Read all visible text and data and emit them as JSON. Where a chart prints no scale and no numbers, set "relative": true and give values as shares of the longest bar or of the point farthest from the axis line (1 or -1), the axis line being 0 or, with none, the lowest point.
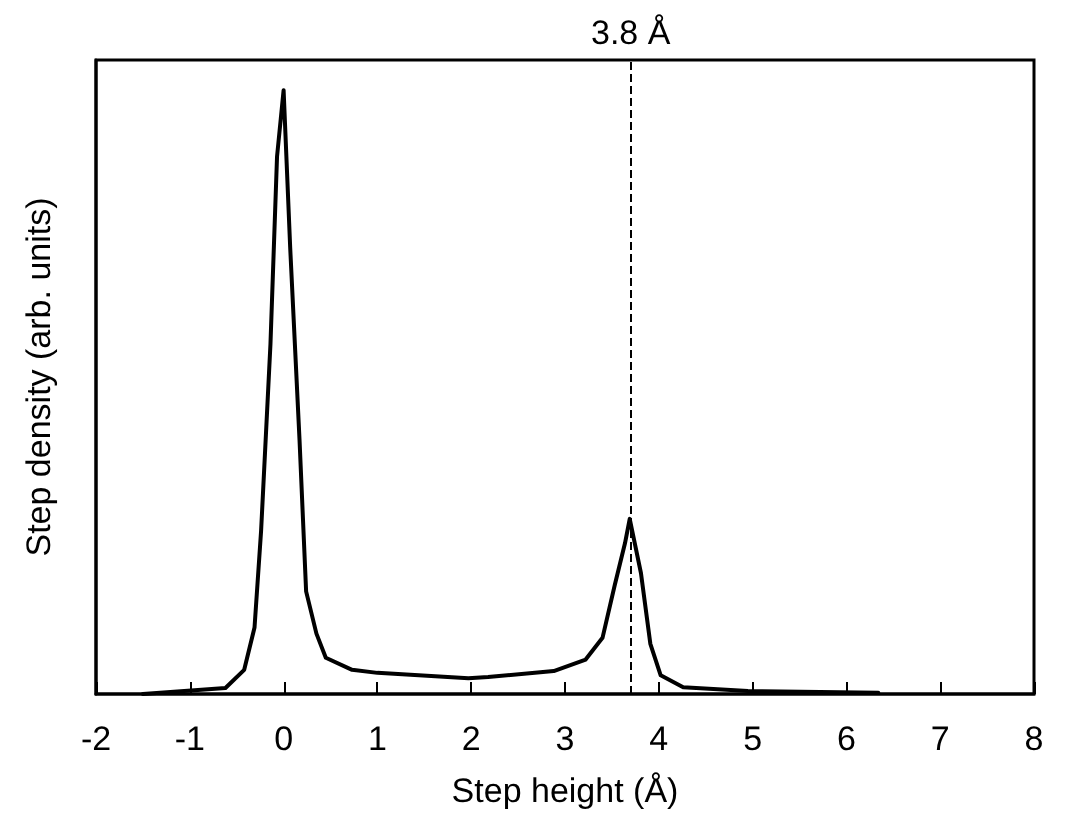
{
  "chart_data": {
    "type": "line",
    "xlabel": "Step height (Å)",
    "ylabel": "Step density (arb. units)",
    "relative": true,
    "xlim": [
      -2,
      8
    ],
    "xticks": [
      -2,
      -1,
      0,
      1,
      2,
      3,
      4,
      5,
      6,
      7,
      8
    ],
    "marker": "none",
    "line_style": "solid",
    "x": [
      -1.5,
      -0.62,
      -0.42,
      -0.31,
      -0.24,
      -0.14,
      -0.07,
      0,
      0.07,
      0.17,
      0.24,
      0.35,
      0.45,
      0.73,
      1.0,
      1.97,
      2.18,
      2.88,
      3.22,
      3.4,
      3.53,
      3.64,
      3.69,
      3.81,
      3.91,
      4.02,
      4.26,
      4.95,
      6.34
    ],
    "series": [
      {
        "color": "#000000",
        "values": [
          0,
          0.01,
          0.04,
          0.11,
          0.27,
          0.58,
          0.89,
          1,
          0.74,
          0.42,
          0.17,
          0.1,
          0.06,
          0.04,
          0.035,
          0.026,
          0.028,
          0.038,
          0.057,
          0.093,
          0.18,
          0.25,
          0.29,
          0.2,
          0.083,
          0.031,
          0.011,
          0.005,
          0.002
        ]
      }
    ],
    "ref_lines": [
      {
        "axis": "x",
        "value": 3.7,
        "label": "3.8 Å",
        "line_style": "dashed",
        "color": "#000000"
      }
    ]
  }
}
